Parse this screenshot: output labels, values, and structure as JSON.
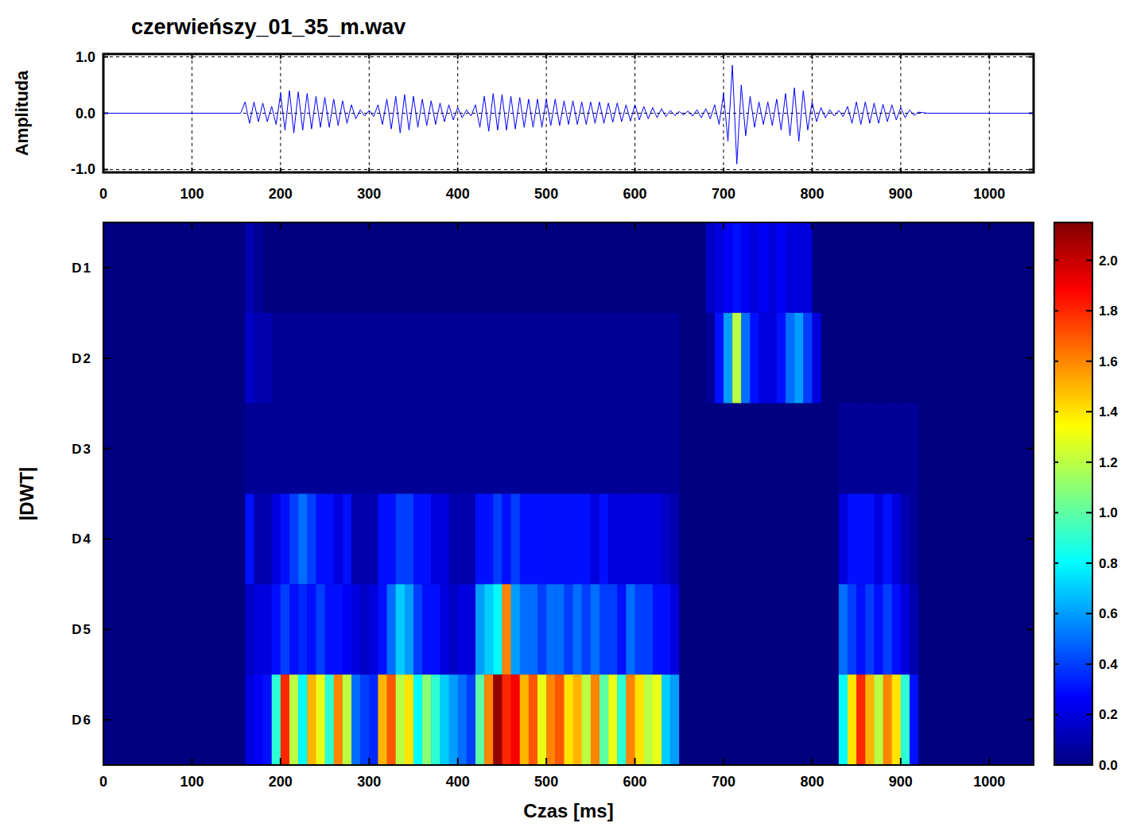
{
  "chart_data": [
    {
      "type": "line",
      "title": "czerwieńszy_01_35_m.wav",
      "ylabel": "Amplituda",
      "color": "#0000ff",
      "grid": true,
      "xlim": [
        0,
        1050
      ],
      "xticks": [
        0,
        100,
        200,
        300,
        400,
        500,
        600,
        700,
        800,
        900,
        1000
      ],
      "ylim": [
        -1.05,
        1.05
      ],
      "yticks": [
        {
          "value": -1,
          "label": "-1.0"
        },
        {
          "value": 0,
          "label": "0.0"
        },
        {
          "value": 1,
          "label": "1.0"
        }
      ],
      "x": [
        0,
        155,
        160,
        165,
        170,
        175,
        180,
        185,
        190,
        195,
        200,
        205,
        210,
        215,
        220,
        225,
        230,
        235,
        240,
        245,
        250,
        255,
        260,
        265,
        270,
        275,
        280,
        285,
        290,
        295,
        300,
        305,
        310,
        315,
        320,
        325,
        330,
        335,
        340,
        345,
        350,
        355,
        360,
        365,
        370,
        375,
        380,
        385,
        390,
        395,
        400,
        405,
        410,
        415,
        420,
        425,
        430,
        435,
        440,
        445,
        450,
        455,
        460,
        465,
        470,
        475,
        480,
        485,
        490,
        495,
        500,
        505,
        510,
        515,
        520,
        525,
        530,
        535,
        540,
        545,
        550,
        555,
        560,
        565,
        570,
        575,
        580,
        585,
        590,
        595,
        600,
        605,
        610,
        615,
        620,
        625,
        630,
        635,
        640,
        645,
        650,
        655,
        660,
        665,
        670,
        675,
        680,
        685,
        690,
        695,
        700,
        705,
        710,
        715,
        720,
        725,
        730,
        735,
        740,
        745,
        750,
        755,
        760,
        765,
        770,
        775,
        780,
        785,
        790,
        795,
        800,
        805,
        810,
        815,
        820,
        825,
        830,
        835,
        840,
        845,
        850,
        855,
        860,
        865,
        870,
        875,
        880,
        885,
        890,
        895,
        900,
        905,
        910,
        915,
        920,
        930,
        1050
      ],
      "values": [
        0,
        0,
        0.2,
        -0.18,
        0.2,
        -0.15,
        0.18,
        -0.15,
        0.12,
        -0.2,
        0.35,
        -0.3,
        0.4,
        -0.35,
        0.38,
        -0.3,
        0.35,
        -0.28,
        0.3,
        -0.25,
        0.28,
        -0.25,
        0.25,
        -0.22,
        0.22,
        -0.18,
        0.15,
        -0.1,
        0.06,
        -0.05,
        0.05,
        -0.06,
        0.15,
        -0.2,
        0.25,
        -0.28,
        0.3,
        -0.35,
        0.33,
        -0.3,
        0.3,
        -0.25,
        0.25,
        -0.22,
        0.22,
        -0.2,
        0.18,
        -0.15,
        0.15,
        -0.12,
        0.1,
        -0.08,
        0.06,
        -0.05,
        0.15,
        -0.25,
        0.3,
        -0.32,
        0.35,
        -0.3,
        0.33,
        -0.3,
        0.3,
        -0.28,
        0.28,
        -0.25,
        0.25,
        -0.25,
        0.25,
        -0.25,
        0.25,
        -0.22,
        0.25,
        -0.22,
        0.22,
        -0.2,
        0.22,
        -0.2,
        0.2,
        -0.2,
        0.2,
        -0.18,
        0.2,
        -0.18,
        0.18,
        -0.16,
        0.18,
        -0.15,
        0.15,
        -0.14,
        0.15,
        -0.12,
        0.12,
        -0.1,
        0.1,
        -0.08,
        0.08,
        -0.06,
        0.05,
        -0.04,
        0.03,
        -0.03,
        0.04,
        -0.05,
        0.06,
        -0.08,
        0.08,
        -0.1,
        0.15,
        -0.2,
        0.35,
        -0.5,
        0.85,
        -0.9,
        0.5,
        -0.4,
        0.3,
        -0.25,
        0.2,
        -0.2,
        0.2,
        -0.22,
        0.25,
        -0.3,
        0.35,
        -0.4,
        0.45,
        -0.5,
        0.4,
        -0.3,
        0.2,
        -0.15,
        0.1,
        -0.08,
        0.06,
        -0.05,
        0.05,
        -0.06,
        0.12,
        -0.18,
        0.2,
        -0.2,
        0.2,
        -0.18,
        0.18,
        -0.18,
        0.16,
        -0.15,
        0.15,
        -0.12,
        0.1,
        -0.08,
        0.06,
        -0.04,
        0.02,
        0,
        0
      ]
    },
    {
      "type": "heatmap",
      "xlabel": "Czas [ms]",
      "ylabel": "|DWT|",
      "color": "jet",
      "xlim": [
        0,
        1050
      ],
      "xticks": [
        0,
        100,
        200,
        300,
        400,
        500,
        600,
        700,
        800,
        900,
        1000
      ],
      "rows": [
        "D1",
        "D2",
        "D3",
        "D4",
        "D5",
        "D6"
      ],
      "bins": [
        0,
        10,
        20,
        30,
        40,
        50,
        60,
        70,
        80,
        90,
        100,
        110,
        120,
        130,
        140,
        150,
        160,
        170,
        180,
        190,
        200,
        210,
        220,
        230,
        240,
        250,
        260,
        270,
        280,
        290,
        300,
        310,
        320,
        330,
        340,
        350,
        360,
        370,
        380,
        390,
        400,
        410,
        420,
        430,
        440,
        450,
        460,
        470,
        480,
        490,
        500,
        510,
        520,
        530,
        540,
        550,
        560,
        570,
        580,
        590,
        600,
        610,
        620,
        630,
        640,
        650,
        660,
        670,
        680,
        690,
        700,
        710,
        720,
        730,
        740,
        750,
        760,
        770,
        780,
        790,
        800,
        810,
        820,
        830,
        840,
        850,
        860,
        870,
        880,
        890,
        900,
        910,
        920,
        930,
        940,
        950,
        960,
        970,
        980,
        990,
        1000,
        1010,
        1020,
        1030,
        1040,
        1050
      ],
      "cells": [
        [
          0,
          0,
          0,
          0,
          0,
          0,
          0,
          0,
          0,
          0,
          0,
          0,
          0,
          0,
          0,
          0,
          0.1,
          0.05,
          0,
          0,
          0,
          0,
          0,
          0,
          0,
          0,
          0,
          0,
          0,
          0,
          0,
          0,
          0,
          0,
          0,
          0,
          0,
          0,
          0,
          0,
          0,
          0,
          0,
          0,
          0,
          0,
          0,
          0,
          0,
          0,
          0,
          0,
          0,
          0,
          0,
          0,
          0,
          0,
          0,
          0,
          0,
          0,
          0,
          0,
          0,
          0,
          0,
          0,
          0.15,
          0.2,
          0.25,
          0.3,
          0.25,
          0.2,
          0.25,
          0.2,
          0.25,
          0.2,
          0.2,
          0.2,
          0,
          0,
          0,
          0,
          0,
          0,
          0,
          0,
          0,
          0,
          0,
          0,
          0,
          0,
          0,
          0,
          0,
          0,
          0,
          0,
          0,
          0,
          0,
          0,
          0
        ],
        [
          0,
          0,
          0,
          0,
          0,
          0,
          0,
          0,
          0,
          0,
          0,
          0,
          0,
          0,
          0,
          0,
          0.15,
          0.1,
          0.1,
          0.05,
          0.05,
          0.05,
          0.05,
          0.05,
          0.05,
          0.05,
          0.05,
          0.05,
          0.05,
          0.05,
          0.05,
          0.05,
          0.05,
          0.05,
          0.05,
          0.05,
          0.05,
          0.05,
          0.05,
          0.05,
          0.05,
          0.05,
          0.05,
          0.05,
          0.05,
          0.05,
          0.05,
          0.05,
          0.05,
          0.05,
          0.05,
          0.05,
          0.05,
          0.05,
          0.05,
          0.05,
          0.05,
          0.05,
          0.05,
          0.05,
          0.05,
          0.05,
          0.05,
          0.05,
          0.05,
          0,
          0,
          0,
          0.05,
          0.3,
          0.6,
          1.2,
          0.5,
          0.3,
          0.2,
          0.2,
          0.3,
          0.5,
          0.6,
          0.4,
          0.2,
          0,
          0,
          0,
          0,
          0,
          0,
          0,
          0,
          0,
          0,
          0,
          0,
          0,
          0,
          0,
          0,
          0,
          0,
          0,
          0,
          0,
          0,
          0,
          0
        ],
        [
          0,
          0,
          0,
          0,
          0,
          0,
          0,
          0,
          0,
          0,
          0,
          0,
          0,
          0,
          0,
          0,
          0.05,
          0.05,
          0.05,
          0.05,
          0.05,
          0.05,
          0.05,
          0.05,
          0.05,
          0.05,
          0.05,
          0.05,
          0.05,
          0.05,
          0.05,
          0.05,
          0.05,
          0.05,
          0.05,
          0.05,
          0.05,
          0.05,
          0.05,
          0.05,
          0.05,
          0.05,
          0.05,
          0.05,
          0.05,
          0.05,
          0.05,
          0.05,
          0.05,
          0.05,
          0.05,
          0.05,
          0.05,
          0.05,
          0.05,
          0.05,
          0.05,
          0.05,
          0.05,
          0.05,
          0.05,
          0.05,
          0.05,
          0.05,
          0.05,
          0,
          0,
          0,
          0,
          0,
          0,
          0,
          0,
          0,
          0,
          0,
          0,
          0,
          0,
          0,
          0,
          0,
          0,
          0.05,
          0.05,
          0.05,
          0.05,
          0.05,
          0.05,
          0.05,
          0.05,
          0.05,
          0,
          0,
          0,
          0,
          0,
          0,
          0,
          0,
          0,
          0,
          0,
          0,
          0
        ],
        [
          0,
          0,
          0,
          0,
          0,
          0,
          0,
          0,
          0,
          0,
          0,
          0,
          0,
          0,
          0,
          0,
          0.3,
          0.1,
          0.1,
          0.2,
          0.3,
          0.4,
          0.5,
          0.4,
          0.3,
          0.3,
          0.2,
          0.3,
          0.1,
          0.1,
          0.1,
          0.3,
          0.3,
          0.4,
          0.4,
          0.3,
          0.3,
          0.2,
          0.2,
          0.1,
          0.1,
          0.1,
          0.3,
          0.3,
          0.4,
          0.3,
          0.4,
          0.3,
          0.3,
          0.3,
          0.3,
          0.3,
          0.3,
          0.3,
          0.3,
          0.2,
          0.3,
          0.2,
          0.2,
          0.2,
          0.2,
          0.2,
          0.2,
          0.15,
          0.1,
          0,
          0,
          0,
          0,
          0,
          0,
          0,
          0,
          0,
          0,
          0,
          0,
          0,
          0,
          0,
          0,
          0,
          0,
          0.2,
          0.3,
          0.3,
          0.3,
          0.2,
          0.3,
          0.2,
          0.1,
          0.05,
          0,
          0,
          0,
          0,
          0,
          0,
          0,
          0,
          0,
          0,
          0,
          0,
          0
        ],
        [
          0,
          0,
          0,
          0,
          0,
          0,
          0,
          0,
          0,
          0,
          0,
          0,
          0,
          0,
          0,
          0,
          0.15,
          0.2,
          0.2,
          0.3,
          0.4,
          0.3,
          0.35,
          0.3,
          0.4,
          0.3,
          0.3,
          0.25,
          0.2,
          0.15,
          0.2,
          0.3,
          0.5,
          0.7,
          0.6,
          0.4,
          0.3,
          0.3,
          0.2,
          0.15,
          0.2,
          0.2,
          0.6,
          0.7,
          0.8,
          1.6,
          0.6,
          0.5,
          0.5,
          0.4,
          0.5,
          0.5,
          0.4,
          0.5,
          0.4,
          0.5,
          0.4,
          0.4,
          0.3,
          0.5,
          0.4,
          0.4,
          0.3,
          0.3,
          0.2,
          0,
          0,
          0,
          0,
          0,
          0,
          0,
          0,
          0,
          0,
          0,
          0,
          0,
          0,
          0,
          0,
          0,
          0,
          0.5,
          0.4,
          0.3,
          0.4,
          0.3,
          0.4,
          0.3,
          0.2,
          0.1,
          0,
          0,
          0,
          0,
          0,
          0,
          0,
          0,
          0,
          0,
          0,
          0,
          0
        ],
        [
          0,
          0,
          0,
          0,
          0,
          0,
          0,
          0,
          0,
          0,
          0,
          0,
          0,
          0,
          0,
          0,
          0.2,
          0.25,
          0.3,
          0.9,
          1.8,
          1.2,
          0.8,
          1.5,
          1.3,
          0.9,
          1.6,
          1.2,
          0.5,
          0.4,
          0.35,
          1.5,
          1.7,
          1.2,
          1.4,
          0.8,
          1.1,
          0.9,
          0.7,
          0.6,
          0.5,
          0.4,
          1.0,
          1.6,
          2.1,
          1.8,
          1.9,
          1.5,
          1.7,
          1.3,
          1.6,
          1.7,
          1.4,
          1.5,
          1.2,
          1.6,
          1.0,
          1.3,
          0.9,
          1.6,
          1.4,
          1.2,
          1.3,
          0.7,
          0.6,
          0,
          0,
          0,
          0,
          0,
          0,
          0,
          0,
          0,
          0,
          0,
          0,
          0,
          0,
          0,
          0,
          0,
          0,
          0.8,
          1.4,
          1.8,
          1.5,
          1.2,
          1.6,
          1.4,
          0.9,
          0.3,
          0,
          0,
          0,
          0,
          0,
          0,
          0,
          0,
          0,
          0,
          0,
          0,
          0
        ]
      ],
      "colorbar_range": [
        0,
        2.15
      ],
      "colorbar_ticks": [
        {
          "value": 0,
          "label": "0.0"
        },
        0.2,
        0.4,
        0.6,
        0.8,
        {
          "value": 1,
          "label": "1.0"
        },
        1.2,
        1.4,
        1.6,
        1.8,
        {
          "value": 2,
          "label": "2.0"
        }
      ]
    }
  ]
}
